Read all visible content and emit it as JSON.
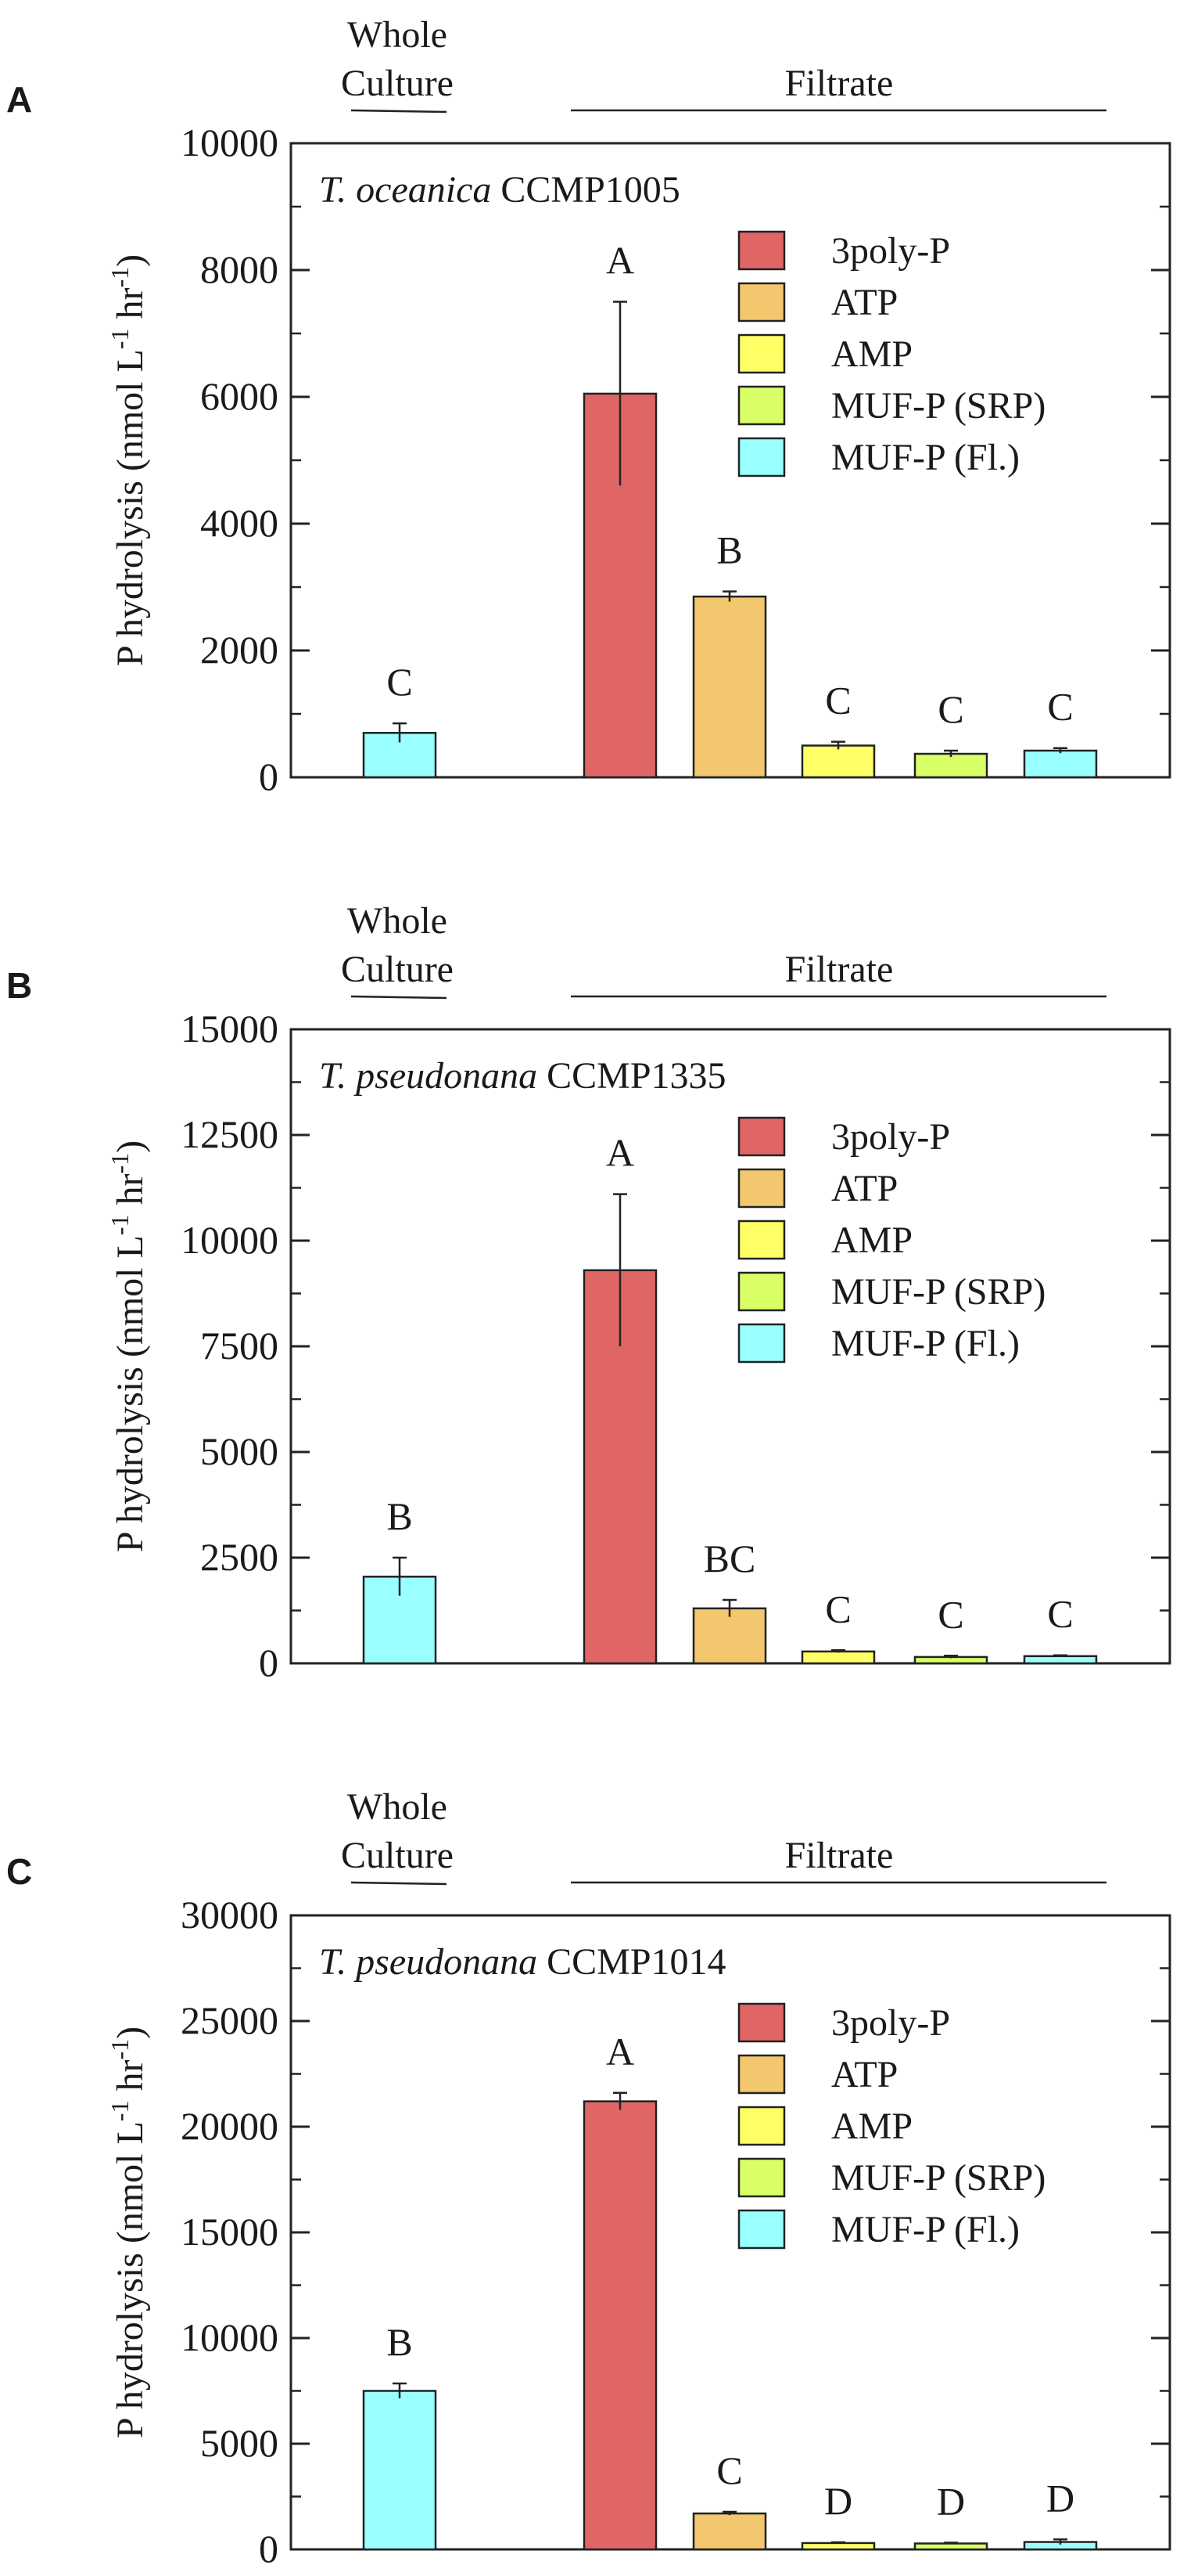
{
  "legend_entries": [
    {
      "label": "3poly-P",
      "color": "#e06666"
    },
    {
      "label": "ATP",
      "color": "#f2c76d"
    },
    {
      "label": "AMP",
      "color": "#ffff66"
    },
    {
      "label": "MUF-P (SRP)",
      "color": "#d9ff66"
    },
    {
      "label": "MUF-P (Fl.)",
      "color": "#99ffff"
    }
  ],
  "chart_data": [
    {
      "panel": "A",
      "type": "bar",
      "title_italic": "T. oceanica",
      "title_strain": "CCMP1005",
      "header_whole_line1": "Whole",
      "header_whole_line2": "Culture",
      "header_filtrate": "Filtrate",
      "ylabel_base": "P hydrolysis (nmol L",
      "ylabel_sup1": "-1",
      "ylabel_mid": " hr",
      "ylabel_sup2": "-1",
      "ylabel_end": ")",
      "ylim": [
        0,
        10000
      ],
      "yticks": [
        0,
        2000,
        4000,
        6000,
        8000,
        10000
      ],
      "ytick_labels": [
        "0",
        "2000",
        "4000",
        "6000",
        "8000",
        "10000"
      ],
      "bars": [
        {
          "group": "Whole Culture",
          "series": "MUF-P (Fl.)",
          "value": 700,
          "error": 150,
          "letter": "C"
        },
        {
          "group": "Filtrate",
          "series": "3poly-P",
          "value": 6050,
          "error": 1450,
          "letter": "A"
        },
        {
          "group": "Filtrate",
          "series": "ATP",
          "value": 2850,
          "error": 80,
          "letter": "B"
        },
        {
          "group": "Filtrate",
          "series": "AMP",
          "value": 500,
          "error": 60,
          "letter": "C"
        },
        {
          "group": "Filtrate",
          "series": "MUF-P (SRP)",
          "value": 370,
          "error": 50,
          "letter": "C"
        },
        {
          "group": "Filtrate",
          "series": "MUF-P (Fl.)",
          "value": 420,
          "error": 40,
          "letter": "C"
        }
      ]
    },
    {
      "panel": "B",
      "type": "bar",
      "title_italic": "T. pseudonana",
      "title_strain": "CCMP1335",
      "header_whole_line1": "Whole",
      "header_whole_line2": "Culture",
      "header_filtrate": "Filtrate",
      "ylabel_base": "P hydrolysis (nmol L",
      "ylabel_sup1": "-1",
      "ylabel_mid": " hr",
      "ylabel_sup2": "-1",
      "ylabel_end": ")",
      "ylim": [
        0,
        15000
      ],
      "yticks": [
        0,
        2500,
        5000,
        7500,
        10000,
        12500,
        15000
      ],
      "ytick_labels": [
        "0",
        "2500",
        "5000",
        "7500",
        "10000",
        "12500",
        "15000"
      ],
      "bars": [
        {
          "group": "Whole Culture",
          "series": "MUF-P (Fl.)",
          "value": 2050,
          "error": 450,
          "letter": "B"
        },
        {
          "group": "Filtrate",
          "series": "3poly-P",
          "value": 9300,
          "error": 1800,
          "letter": "A"
        },
        {
          "group": "Filtrate",
          "series": "ATP",
          "value": 1300,
          "error": 200,
          "letter": "BC"
        },
        {
          "group": "Filtrate",
          "series": "AMP",
          "value": 280,
          "error": 30,
          "letter": "C"
        },
        {
          "group": "Filtrate",
          "series": "MUF-P (SRP)",
          "value": 150,
          "error": 30,
          "letter": "C"
        },
        {
          "group": "Filtrate",
          "series": "MUF-P (Fl.)",
          "value": 170,
          "error": 20,
          "letter": "C"
        }
      ]
    },
    {
      "panel": "C",
      "type": "bar",
      "title_italic": "T. pseudonana",
      "title_strain": "CCMP1014",
      "header_whole_line1": "Whole",
      "header_whole_line2": "Culture",
      "header_filtrate": "Filtrate",
      "ylabel_base": "P hydrolysis (nmol L",
      "ylabel_sup1": "-1",
      "ylabel_mid": " hr",
      "ylabel_sup2": "-1",
      "ylabel_end": ")",
      "ylim": [
        0,
        30000
      ],
      "yticks": [
        0,
        5000,
        10000,
        15000,
        20000,
        25000,
        30000
      ],
      "ytick_labels": [
        "0",
        "5000",
        "10000",
        "15000",
        "20000",
        "25000",
        "30000"
      ],
      "bars": [
        {
          "group": "Whole Culture",
          "series": "MUF-P (Fl.)",
          "value": 7500,
          "error": 350,
          "letter": "B"
        },
        {
          "group": "Filtrate",
          "series": "3poly-P",
          "value": 21200,
          "error": 400,
          "letter": "A"
        },
        {
          "group": "Filtrate",
          "series": "ATP",
          "value": 1700,
          "error": 80,
          "letter": "C"
        },
        {
          "group": "Filtrate",
          "series": "AMP",
          "value": 300,
          "error": 40,
          "letter": "D"
        },
        {
          "group": "Filtrate",
          "series": "MUF-P (SRP)",
          "value": 280,
          "error": 40,
          "letter": "D"
        },
        {
          "group": "Filtrate",
          "series": "MUF-P (Fl.)",
          "value": 350,
          "error": 120,
          "letter": "D"
        }
      ]
    }
  ]
}
